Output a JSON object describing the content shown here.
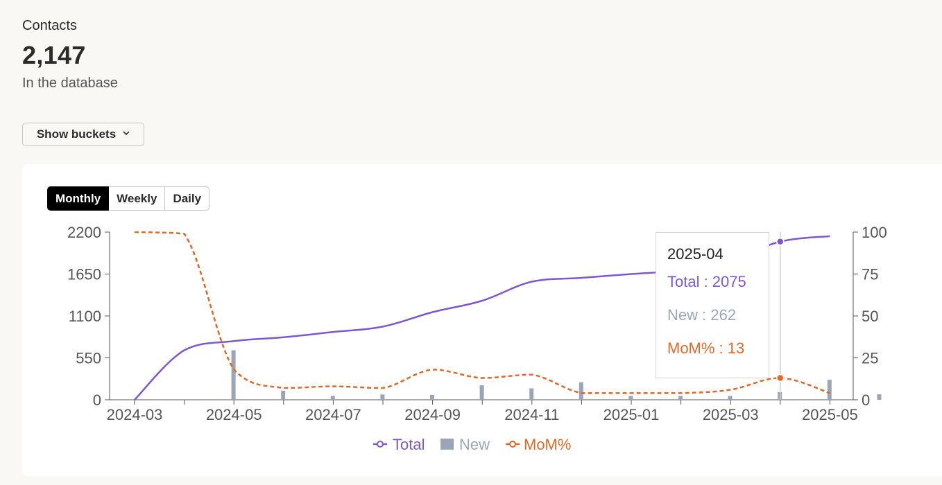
{
  "summary": {
    "label": "Contacts",
    "value": "2,147",
    "caption": "In the database"
  },
  "buckets_button": {
    "label": "Show buckets",
    "icon": "chevron-down-icon"
  },
  "tabs": [
    {
      "label": "Monthly",
      "active": true
    },
    {
      "label": "Weekly",
      "active": false
    },
    {
      "label": "Daily",
      "active": false
    }
  ],
  "colors": {
    "total": "#7e57d0",
    "new": "#9aa6b8",
    "mom": "#e06a25"
  },
  "chart_data": {
    "type": "line",
    "x": [
      "2024-03",
      "2024-04",
      "2024-05",
      "2024-06",
      "2024-07",
      "2024-08",
      "2024-09",
      "2024-10",
      "2024-11",
      "2024-12",
      "2025-01",
      "2025-02",
      "2025-03",
      "2025-04",
      "2025-05"
    ],
    "x_tick_labels": [
      "2024-03",
      "2024-05",
      "2024-07",
      "2024-09",
      "2024-11",
      "2025-01",
      "2025-03",
      "2025-05"
    ],
    "y_left": {
      "ticks": [
        "0",
        "550",
        "1100",
        "1650",
        "2200"
      ],
      "range": [
        0,
        2200
      ]
    },
    "y_right": {
      "ticks": [
        "0",
        "25",
        "50",
        "75",
        "100"
      ],
      "range": [
        0,
        100
      ]
    },
    "series": [
      {
        "name": "Total",
        "type": "line",
        "axis": "left",
        "values": [
          0,
          650,
          770,
          820,
          890,
          960,
          1150,
          1300,
          1550,
          1600,
          1650,
          1700,
          1830,
          2075,
          2147
        ]
      },
      {
        "name": "New",
        "type": "bar",
        "axis": "left",
        "values": [
          0,
          650,
          120,
          50,
          70,
          65,
          190,
          150,
          230,
          50,
          50,
          50,
          100,
          262,
          72
        ]
      },
      {
        "name": "MoM%",
        "type": "line",
        "style": "dashed",
        "axis": "right",
        "values": [
          100,
          99,
          18,
          7,
          8,
          7,
          18,
          13,
          15,
          4,
          4,
          4,
          6,
          13,
          4
        ]
      }
    ],
    "legend": {
      "placement": "bottom-center",
      "items": [
        "Total",
        "New",
        "MoM%"
      ]
    },
    "grid": false,
    "hover_index": 13
  },
  "tooltip": {
    "title": "2025-04",
    "total": "Total : 2075",
    "new": "New : 262",
    "mom": "MoM% : 13"
  }
}
